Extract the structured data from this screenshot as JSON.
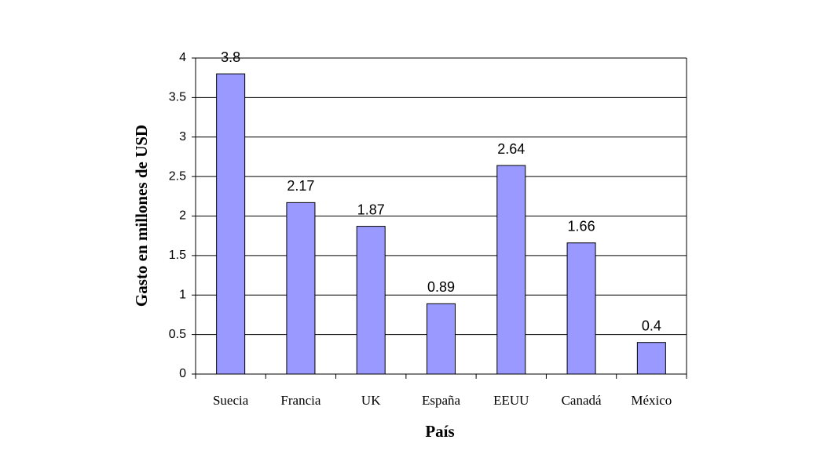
{
  "chart_data": {
    "type": "bar",
    "x_label": "País",
    "y_label": "Gasto en millones de USD",
    "categories": [
      "Suecia",
      "Francia",
      "UK",
      "España",
      "EEUU",
      "Canadá",
      "México"
    ],
    "values": [
      3.8,
      2.17,
      1.87,
      0.89,
      2.64,
      1.66,
      0.4
    ],
    "color": "#9999ff",
    "ylim": [
      0,
      4
    ],
    "yticks": [
      0,
      0.5,
      1,
      1.5,
      2,
      2.5,
      3,
      3.5,
      4
    ],
    "grid": true,
    "data_labels": true
  }
}
